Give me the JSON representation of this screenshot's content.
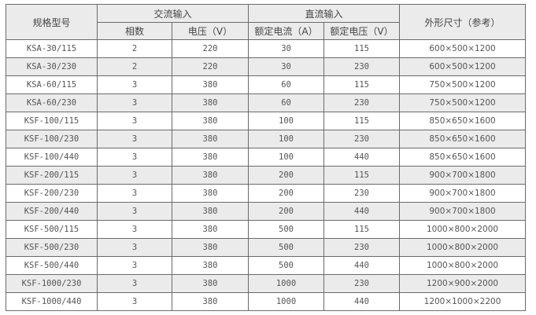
{
  "header": {
    "model": "规格型号",
    "ac_input": "交流输入",
    "dc_input": "直流输入",
    "dimensions": "外形尺寸（参考）",
    "phases": "相数",
    "voltage": "电压（V）",
    "rated_current": "额定电流（A）",
    "rated_voltage": "额定电压（V）"
  },
  "rows": [
    {
      "model": "KSA-30/115",
      "phases": "2",
      "ac_v": "220",
      "dc_a": "30",
      "dc_v": "115",
      "dim": "600×500×1200"
    },
    {
      "model": "KSA-30/230",
      "phases": "2",
      "ac_v": "220",
      "dc_a": "30",
      "dc_v": "230",
      "dim": "600×500×1200"
    },
    {
      "model": "KSA-60/115",
      "phases": "3",
      "ac_v": "380",
      "dc_a": "60",
      "dc_v": "115",
      "dim": "750×500×1200"
    },
    {
      "model": "KSA-60/230",
      "phases": "3",
      "ac_v": "380",
      "dc_a": "60",
      "dc_v": "230",
      "dim": "750×500×1200"
    },
    {
      "model": "KSF-100/115",
      "phases": "3",
      "ac_v": "380",
      "dc_a": "100",
      "dc_v": "115",
      "dim": "850×650×1600"
    },
    {
      "model": "KSF-100/230",
      "phases": "3",
      "ac_v": "380",
      "dc_a": "100",
      "dc_v": "230",
      "dim": "850×650×1600"
    },
    {
      "model": "KSF-100/440",
      "phases": "3",
      "ac_v": "380",
      "dc_a": "100",
      "dc_v": "440",
      "dim": "850×650×1600"
    },
    {
      "model": "KSF-200/115",
      "phases": "3",
      "ac_v": "380",
      "dc_a": "200",
      "dc_v": "115",
      "dim": "900×700×1800"
    },
    {
      "model": "KSF-200/230",
      "phases": "3",
      "ac_v": "380",
      "dc_a": "200",
      "dc_v": "230",
      "dim": "900×700×1800"
    },
    {
      "model": "KSF-200/440",
      "phases": "3",
      "ac_v": "380",
      "dc_a": "200",
      "dc_v": "440",
      "dim": "900×700×1800"
    },
    {
      "model": "KSF-500/115",
      "phases": "3",
      "ac_v": "380",
      "dc_a": "500",
      "dc_v": "115",
      "dim": "1000×800×2000"
    },
    {
      "model": "KSF-500/230",
      "phases": "3",
      "ac_v": "380",
      "dc_a": "500",
      "dc_v": "230",
      "dim": "1000×800×2000"
    },
    {
      "model": "KSF-500/440",
      "phases": "3",
      "ac_v": "380",
      "dc_a": "500",
      "dc_v": "440",
      "dim": "1000×800×2000"
    },
    {
      "model": "KSF-1000/230",
      "phases": "3",
      "ac_v": "380",
      "dc_a": "1000",
      "dc_v": "230",
      "dim": "1200×900×2000"
    },
    {
      "model": "KSF-1000/440",
      "phases": "3",
      "ac_v": "380",
      "dc_a": "1000",
      "dc_v": "440",
      "dim": "1200×1000×2200"
    }
  ]
}
